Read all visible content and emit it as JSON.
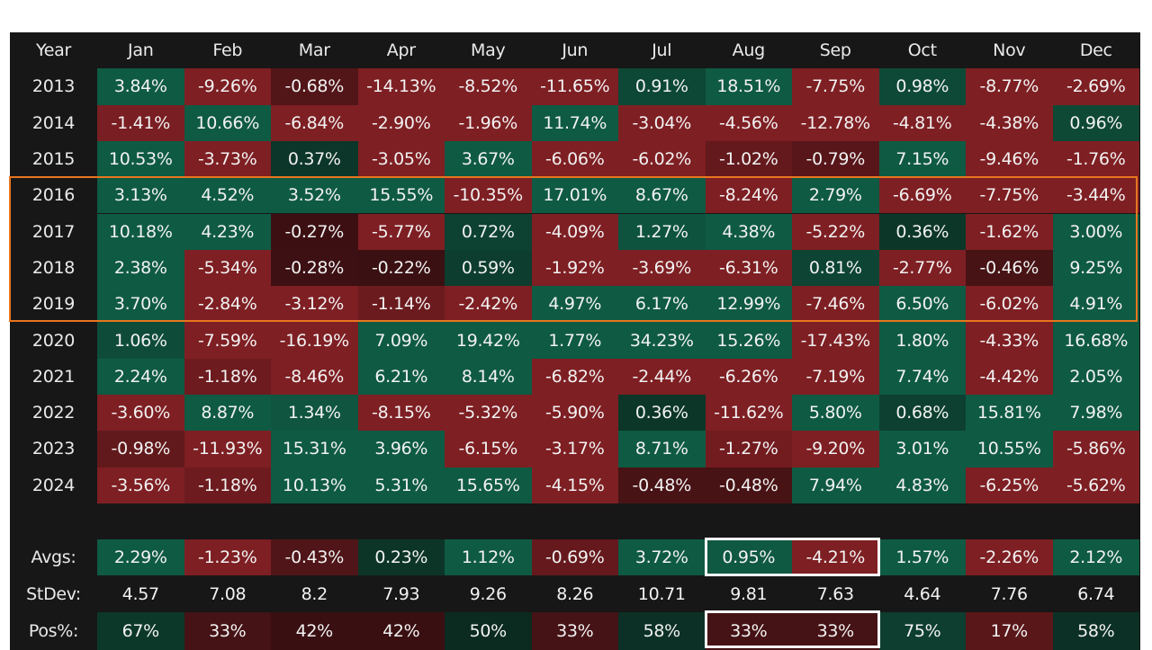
{
  "chart_data": {
    "type": "table",
    "corner": "Year",
    "months": [
      "Jan",
      "Feb",
      "Mar",
      "Apr",
      "May",
      "Jun",
      "Jul",
      "Aug",
      "Sep",
      "Oct",
      "Nov",
      "Dec"
    ],
    "years": [
      "2013",
      "2014",
      "2015",
      "2016",
      "2017",
      "2018",
      "2019",
      "2020",
      "2021",
      "2022",
      "2023",
      "2024"
    ],
    "returns": [
      [
        "3.84%",
        "-9.26%",
        "-0.68%",
        "-14.13%",
        "-8.52%",
        "-11.65%",
        "0.91%",
        "18.51%",
        "-7.75%",
        "0.98%",
        "-8.77%",
        "-2.69%"
      ],
      [
        "-1.41%",
        "10.66%",
        "-6.84%",
        "-2.90%",
        "-1.96%",
        "11.74%",
        "-3.04%",
        "-4.56%",
        "-12.78%",
        "-4.81%",
        "-4.38%",
        "0.96%"
      ],
      [
        "10.53%",
        "-3.73%",
        "0.37%",
        "-3.05%",
        "3.67%",
        "-6.06%",
        "-6.02%",
        "-1.02%",
        "-0.79%",
        "7.15%",
        "-9.46%",
        "-1.76%"
      ],
      [
        "3.13%",
        "4.52%",
        "3.52%",
        "15.55%",
        "-10.35%",
        "17.01%",
        "8.67%",
        "-8.24%",
        "2.79%",
        "-6.69%",
        "-7.75%",
        "-3.44%"
      ],
      [
        "10.18%",
        "4.23%",
        "-0.27%",
        "-5.77%",
        "0.72%",
        "-4.09%",
        "1.27%",
        "4.38%",
        "-5.22%",
        "0.36%",
        "-1.62%",
        "3.00%"
      ],
      [
        "2.38%",
        "-5.34%",
        "-0.28%",
        "-0.22%",
        "0.59%",
        "-1.92%",
        "-3.69%",
        "-6.31%",
        "0.81%",
        "-2.77%",
        "-0.46%",
        "9.25%"
      ],
      [
        "3.70%",
        "-2.84%",
        "-3.12%",
        "-1.14%",
        "-2.42%",
        "4.97%",
        "6.17%",
        "12.99%",
        "-7.46%",
        "6.50%",
        "-6.02%",
        "4.91%"
      ],
      [
        "1.06%",
        "-7.59%",
        "-16.19%",
        "7.09%",
        "19.42%",
        "1.77%",
        "34.23%",
        "15.26%",
        "-17.43%",
        "1.80%",
        "-4.33%",
        "16.68%"
      ],
      [
        "2.24%",
        "-1.18%",
        "-8.46%",
        "6.21%",
        "8.14%",
        "-6.82%",
        "-2.44%",
        "-6.26%",
        "-7.19%",
        "7.74%",
        "-4.42%",
        "2.05%"
      ],
      [
        "-3.60%",
        "8.87%",
        "1.34%",
        "-8.15%",
        "-5.32%",
        "-5.90%",
        "0.36%",
        "-11.62%",
        "5.80%",
        "0.68%",
        "15.81%",
        "7.98%"
      ],
      [
        "-0.98%",
        "-11.93%",
        "15.31%",
        "3.96%",
        "-6.15%",
        "-3.17%",
        "8.71%",
        "-1.27%",
        "-9.20%",
        "3.01%",
        "10.55%",
        "-5.86%"
      ],
      [
        "-3.56%",
        "-1.18%",
        "10.13%",
        "5.31%",
        "15.65%",
        "-4.15%",
        "-0.48%",
        "-0.48%",
        "7.94%",
        "4.83%",
        "-6.25%",
        "-5.62%"
      ]
    ],
    "avgs_label": "Avgs:",
    "avgs": [
      "2.29%",
      "-1.23%",
      "-0.43%",
      "0.23%",
      "1.12%",
      "-0.69%",
      "3.72%",
      "0.95%",
      "-4.21%",
      "1.57%",
      "-2.26%",
      "2.12%"
    ],
    "stdev_label": "StDev:",
    "stdev": [
      "4.57",
      "7.08",
      "8.2",
      "7.93",
      "9.26",
      "8.26",
      "10.71",
      "9.81",
      "7.63",
      "4.64",
      "7.76",
      "6.74"
    ],
    "pos_label": "Pos%:",
    "pos": [
      "67%",
      "33%",
      "42%",
      "42%",
      "50%",
      "33%",
      "58%",
      "33%",
      "33%",
      "75%",
      "17%",
      "58%"
    ],
    "highlighted_years": [
      "2016",
      "2017",
      "2018",
      "2019"
    ],
    "highlighted_months": [
      "Aug",
      "Sep"
    ]
  },
  "colors": {
    "panel_background": "#171717",
    "positive_strong": "#0f5a43",
    "positive_faint": "#0b2a20",
    "negative_strong": "#7e1f23",
    "negative_faint": "#2e0d0f",
    "highlight_years_border": "#e8761f",
    "highlight_months_border": "#ffffff"
  }
}
